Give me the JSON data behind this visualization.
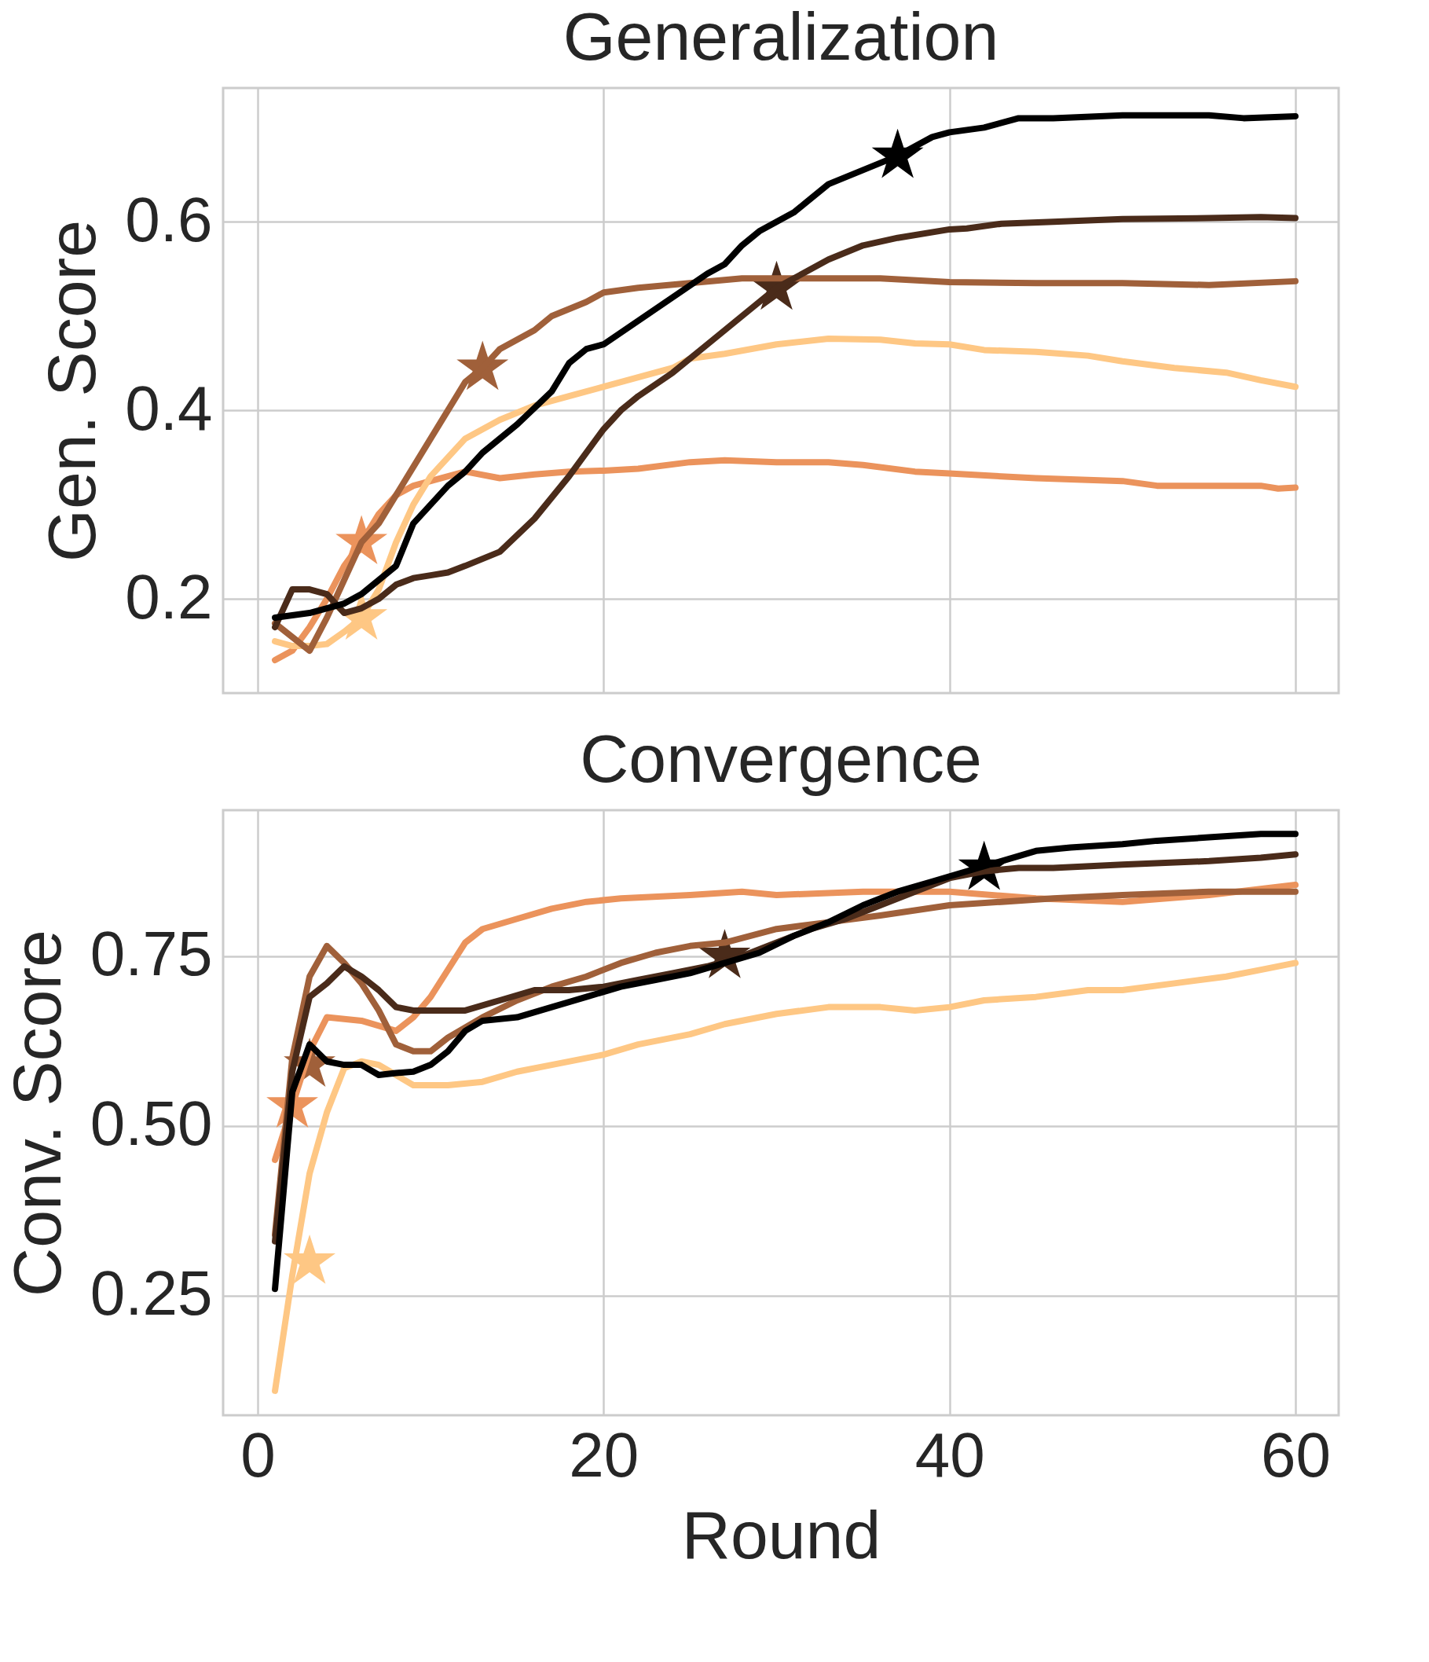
{
  "chart_data": [
    {
      "type": "line",
      "title": "Generalization",
      "ylabel": "Gen. Score",
      "xlim": [
        -2,
        62.5
      ],
      "ylim": [
        0.1,
        0.742
      ],
      "xticks": [
        0,
        20,
        40,
        60
      ],
      "yticks": [
        0.2,
        0.4,
        0.6
      ],
      "grid": true,
      "tick_labels": "y",
      "line_style": "solid",
      "series": [
        {
          "color": "#eb935c",
          "x": [
            1,
            2,
            3,
            4,
            5,
            6,
            7,
            8,
            9,
            10,
            12,
            14,
            16,
            18,
            20,
            22,
            25,
            27,
            30,
            33,
            35,
            38,
            40,
            45,
            50,
            52,
            55,
            58,
            59,
            60
          ],
          "values": [
            0.135,
            0.145,
            0.17,
            0.2,
            0.235,
            0.26,
            0.29,
            0.31,
            0.32,
            0.325,
            0.335,
            0.328,
            0.332,
            0.335,
            0.336,
            0.338,
            0.345,
            0.347,
            0.345,
            0.345,
            0.342,
            0.335,
            0.333,
            0.328,
            0.325,
            0.32,
            0.32,
            0.32,
            0.317,
            0.318
          ]
        },
        {
          "color": "#fec784",
          "x": [
            1,
            2,
            3,
            4,
            5,
            6,
            7,
            8,
            9,
            10,
            11,
            12,
            14,
            16,
            18,
            20,
            22,
            24,
            25,
            27,
            30,
            33,
            36,
            38,
            40,
            42,
            45,
            48,
            50,
            53,
            56,
            58,
            60
          ],
          "values": [
            0.155,
            0.15,
            0.15,
            0.152,
            0.165,
            0.18,
            0.21,
            0.26,
            0.3,
            0.33,
            0.35,
            0.37,
            0.39,
            0.405,
            0.415,
            0.425,
            0.435,
            0.445,
            0.455,
            0.46,
            0.47,
            0.476,
            0.475,
            0.471,
            0.47,
            0.464,
            0.462,
            0.458,
            0.452,
            0.445,
            0.44,
            0.432,
            0.425
          ]
        },
        {
          "color": "#a0603a",
          "x": [
            1,
            3,
            4,
            5,
            6,
            7,
            8,
            9,
            10,
            11,
            12,
            13,
            14,
            16,
            17,
            19,
            20,
            22,
            25,
            28,
            30,
            33,
            36,
            40,
            45,
            50,
            55,
            60
          ],
          "values": [
            0.174,
            0.145,
            0.18,
            0.22,
            0.26,
            0.28,
            0.31,
            0.34,
            0.37,
            0.4,
            0.43,
            0.445,
            0.465,
            0.485,
            0.5,
            0.515,
            0.525,
            0.53,
            0.535,
            0.54,
            0.54,
            0.54,
            0.54,
            0.536,
            0.535,
            0.535,
            0.533,
            0.537
          ]
        },
        {
          "color": "#4a2b1a",
          "x": [
            1,
            2,
            3,
            4,
            5,
            6,
            7,
            8,
            9,
            10,
            11,
            12,
            14,
            16,
            18,
            20,
            21,
            22,
            24,
            26,
            28,
            29,
            30,
            32,
            33,
            35,
            37,
            40,
            41,
            43,
            46,
            50,
            55,
            58,
            60
          ],
          "values": [
            0.17,
            0.21,
            0.21,
            0.205,
            0.185,
            0.19,
            0.2,
            0.215,
            0.222,
            0.225,
            0.228,
            0.235,
            0.25,
            0.285,
            0.33,
            0.38,
            0.4,
            0.415,
            0.44,
            0.47,
            0.5,
            0.515,
            0.53,
            0.55,
            0.56,
            0.575,
            0.583,
            0.592,
            0.593,
            0.598,
            0.6,
            0.603,
            0.604,
            0.605,
            0.604
          ]
        },
        {
          "color": "#000000",
          "x": [
            1,
            3,
            5,
            6,
            7,
            8,
            9,
            10,
            11,
            12,
            13,
            15,
            17,
            18,
            19,
            20,
            22,
            24,
            26,
            27,
            28,
            29,
            31,
            33,
            35,
            37,
            39,
            40,
            42,
            44,
            46,
            50,
            55,
            57,
            60
          ],
          "values": [
            0.18,
            0.185,
            0.195,
            0.205,
            0.22,
            0.235,
            0.28,
            0.3,
            0.32,
            0.335,
            0.355,
            0.385,
            0.42,
            0.45,
            0.465,
            0.47,
            0.495,
            0.52,
            0.545,
            0.555,
            0.575,
            0.59,
            0.61,
            0.64,
            0.655,
            0.67,
            0.69,
            0.695,
            0.7,
            0.71,
            0.71,
            0.713,
            0.713,
            0.71,
            0.712
          ]
        },
        {
          "type": "scatter",
          "marker": "star",
          "color": "#eb935c",
          "x": [
            6
          ],
          "values": [
            0.26
          ]
        },
        {
          "type": "scatter",
          "marker": "star",
          "color": "#fec784",
          "x": [
            6
          ],
          "values": [
            0.18
          ]
        },
        {
          "type": "scatter",
          "marker": "star",
          "color": "#a0603a",
          "x": [
            13
          ],
          "values": [
            0.445
          ]
        },
        {
          "type": "scatter",
          "marker": "star",
          "color": "#4a2b1a",
          "x": [
            30
          ],
          "values": [
            0.53
          ]
        },
        {
          "type": "scatter",
          "marker": "star",
          "color": "#000000",
          "x": [
            37
          ],
          "values": [
            0.67
          ]
        }
      ]
    },
    {
      "type": "line",
      "title": "Convergence",
      "xlabel": "Round",
      "ylabel": "Conv. Score",
      "xlim": [
        -2,
        62.5
      ],
      "ylim": [
        0.074,
        0.965
      ],
      "xticks": [
        0,
        20,
        40,
        60
      ],
      "yticks": [
        {
          "value": 0.25,
          "label": "0.25"
        },
        {
          "value": 0.5,
          "label": "0.50"
        },
        {
          "value": 0.75,
          "label": "0.75"
        }
      ],
      "grid": true,
      "line_style": "solid",
      "series": [
        {
          "color": "#eb935c",
          "x": [
            1,
            2,
            3,
            4,
            6,
            8,
            9,
            10,
            11,
            12,
            13,
            15,
            17,
            19,
            21,
            25,
            28,
            30,
            35,
            40,
            45,
            50,
            55,
            60
          ],
          "values": [
            0.45,
            0.53,
            0.61,
            0.66,
            0.655,
            0.64,
            0.66,
            0.69,
            0.73,
            0.77,
            0.79,
            0.805,
            0.82,
            0.83,
            0.835,
            0.84,
            0.845,
            0.84,
            0.845,
            0.845,
            0.835,
            0.83,
            0.84,
            0.855
          ]
        },
        {
          "color": "#fec784",
          "x": [
            1,
            2,
            3,
            4,
            5,
            6,
            7,
            8,
            9,
            11,
            13,
            15,
            17,
            20,
            22,
            25,
            27,
            30,
            33,
            36,
            38,
            40,
            42,
            45,
            48,
            50,
            53,
            56,
            58,
            60
          ],
          "values": [
            0.11,
            0.28,
            0.43,
            0.52,
            0.585,
            0.595,
            0.59,
            0.575,
            0.56,
            0.56,
            0.565,
            0.58,
            0.59,
            0.605,
            0.62,
            0.635,
            0.65,
            0.665,
            0.675,
            0.675,
            0.67,
            0.675,
            0.685,
            0.69,
            0.7,
            0.7,
            0.71,
            0.72,
            0.73,
            0.74
          ]
        },
        {
          "color": "#a0603a",
          "x": [
            1,
            2,
            3,
            4,
            5,
            6,
            7,
            8,
            9,
            10,
            11,
            13,
            15,
            17,
            19,
            21,
            23,
            25,
            27,
            30,
            33,
            36,
            40,
            43,
            46,
            50,
            55,
            60
          ],
          "values": [
            0.34,
            0.6,
            0.72,
            0.765,
            0.74,
            0.71,
            0.67,
            0.62,
            0.61,
            0.61,
            0.63,
            0.66,
            0.685,
            0.705,
            0.72,
            0.74,
            0.755,
            0.765,
            0.77,
            0.79,
            0.8,
            0.81,
            0.825,
            0.83,
            0.835,
            0.84,
            0.845,
            0.845
          ]
        },
        {
          "color": "#4a2b1a",
          "x": [
            1,
            2,
            3,
            4,
            5,
            6,
            7,
            8,
            9,
            11,
            12,
            14,
            16,
            18,
            20,
            22,
            24,
            26,
            28,
            30,
            32,
            34,
            36,
            38,
            40,
            42,
            44,
            46,
            50,
            55,
            58,
            60
          ],
          "values": [
            0.33,
            0.58,
            0.69,
            0.71,
            0.735,
            0.72,
            0.7,
            0.675,
            0.67,
            0.67,
            0.67,
            0.685,
            0.7,
            0.7,
            0.705,
            0.715,
            0.725,
            0.735,
            0.75,
            0.77,
            0.79,
            0.805,
            0.825,
            0.845,
            0.865,
            0.875,
            0.88,
            0.88,
            0.885,
            0.89,
            0.895,
            0.9
          ]
        },
        {
          "color": "#000000",
          "x": [
            1,
            2,
            3,
            4,
            5,
            6,
            7,
            8,
            9,
            10,
            11,
            12,
            13,
            15,
            17,
            19,
            21,
            23,
            25,
            27,
            29,
            31,
            33,
            35,
            37,
            39,
            41,
            43,
            45,
            47,
            50,
            52,
            55,
            58,
            60
          ],
          "values": [
            0.26,
            0.55,
            0.62,
            0.595,
            0.59,
            0.59,
            0.575,
            0.578,
            0.58,
            0.59,
            0.61,
            0.64,
            0.655,
            0.66,
            0.675,
            0.69,
            0.705,
            0.715,
            0.725,
            0.74,
            0.755,
            0.78,
            0.8,
            0.825,
            0.845,
            0.86,
            0.875,
            0.89,
            0.905,
            0.91,
            0.915,
            0.92,
            0.925,
            0.93,
            0.93
          ]
        },
        {
          "type": "scatter",
          "marker": "star",
          "color": "#eb935c",
          "x": [
            2
          ],
          "values": [
            0.53
          ]
        },
        {
          "type": "scatter",
          "marker": "star",
          "color": "#fec784",
          "x": [
            3
          ],
          "values": [
            0.3
          ]
        },
        {
          "type": "scatter",
          "marker": "star",
          "color": "#a0603a",
          "x": [
            3
          ],
          "values": [
            0.59
          ]
        },
        {
          "type": "scatter",
          "marker": "star",
          "color": "#4a2b1a",
          "x": [
            27
          ],
          "values": [
            0.75
          ]
        },
        {
          "type": "scatter",
          "marker": "star",
          "color": "#000000",
          "x": [
            42
          ],
          "values": [
            0.88
          ]
        }
      ]
    }
  ]
}
